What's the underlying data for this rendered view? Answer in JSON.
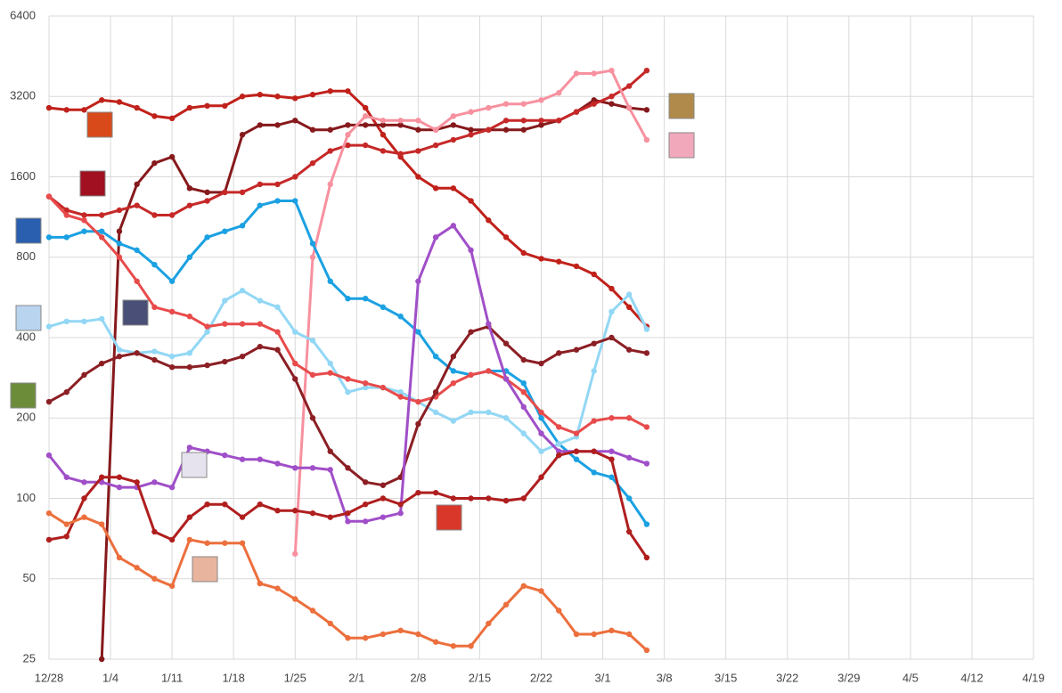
{
  "chart_data": {
    "type": "line",
    "log_scale": true,
    "grid": true,
    "x": [
      0,
      2,
      4,
      6,
      8,
      10,
      12,
      14,
      16,
      18,
      20,
      22,
      24,
      26,
      28,
      30,
      32,
      34,
      36,
      38,
      40,
      42,
      44,
      46,
      48,
      50,
      52,
      54,
      56,
      58,
      60,
      62,
      64,
      66,
      68
    ],
    "xlim": [
      0,
      112
    ],
    "xticks": [
      {
        "value": 0,
        "label": "12/28"
      },
      {
        "value": 7,
        "label": "1/4"
      },
      {
        "value": 14,
        "label": "1/11"
      },
      {
        "value": 21,
        "label": "1/18"
      },
      {
        "value": 28,
        "label": "1/25"
      },
      {
        "value": 35,
        "label": "2/1"
      },
      {
        "value": 42,
        "label": "2/8"
      },
      {
        "value": 49,
        "label": "2/15"
      },
      {
        "value": 56,
        "label": "2/22"
      },
      {
        "value": 63,
        "label": "3/1"
      },
      {
        "value": 70,
        "label": "3/8"
      },
      {
        "value": 77,
        "label": "3/15"
      },
      {
        "value": 84,
        "label": "3/22"
      },
      {
        "value": 91,
        "label": "3/29"
      },
      {
        "value": 98,
        "label": "4/5"
      },
      {
        "value": 105,
        "label": "4/12"
      },
      {
        "value": 112,
        "label": "4/19"
      }
    ],
    "ylim": [
      25,
      6400
    ],
    "yticks": [
      25,
      50,
      100,
      200,
      400,
      800,
      1600,
      3200,
      6400
    ],
    "series": [
      {
        "color": "#c0211a",
        "values": [
          2900,
          2850,
          2850,
          3100,
          3050,
          2900,
          2700,
          2650,
          2900,
          2950,
          2950,
          3200,
          3250,
          3200,
          3150,
          3250,
          3350,
          3350,
          2900,
          2300,
          1900,
          1600,
          1450,
          1450,
          1300,
          1100,
          950,
          830,
          790,
          770,
          740,
          690,
          610,
          520,
          440
        ]
      },
      {
        "color": "#86191c",
        "values": [
          null,
          null,
          null,
          25,
          1000,
          1500,
          1800,
          1900,
          1450,
          1400,
          1400,
          2300,
          2500,
          2500,
          2600,
          2400,
          2400,
          2500,
          2500,
          2500,
          2500,
          2400,
          2400,
          2500,
          2400,
          2400,
          2400,
          2400,
          2500,
          2600,
          2800,
          3100,
          3000,
          2900,
          2850
        ]
      },
      {
        "color": "#c62828",
        "values": [
          1350,
          1200,
          1150,
          1150,
          1200,
          1250,
          1150,
          1150,
          1250,
          1300,
          1400,
          1400,
          1500,
          1500,
          1600,
          1800,
          2000,
          2100,
          2100,
          2000,
          1950,
          2000,
          2100,
          2200,
          2300,
          2400,
          2600,
          2600,
          2600,
          2600,
          2800,
          3000,
          3200,
          3500,
          4000
        ]
      },
      {
        "color": "#f7919f",
        "values": [
          null,
          null,
          null,
          null,
          null,
          null,
          null,
          null,
          null,
          null,
          null,
          null,
          null,
          null,
          62,
          800,
          1500,
          2300,
          2700,
          2600,
          2600,
          2600,
          2400,
          2700,
          2800,
          2900,
          3000,
          3000,
          3100,
          3300,
          3900,
          3900,
          4000,
          2900,
          2200
        ]
      },
      {
        "color": "#1ba1e2",
        "values": [
          950,
          950,
          1000,
          1000,
          900,
          850,
          750,
          650,
          800,
          950,
          1000,
          1050,
          1250,
          1300,
          1300,
          900,
          650,
          560,
          560,
          520,
          480,
          420,
          340,
          300,
          290,
          300,
          300,
          270,
          200,
          160,
          140,
          125,
          120,
          100,
          80
        ]
      },
      {
        "color": "#92d7f5",
        "values": [
          440,
          460,
          460,
          470,
          360,
          350,
          355,
          340,
          350,
          420,
          550,
          600,
          550,
          520,
          420,
          390,
          320,
          250,
          260,
          260,
          250,
          230,
          210,
          195,
          210,
          210,
          200,
          175,
          150,
          160,
          170,
          300,
          500,
          580,
          430
        ]
      },
      {
        "color": "#e84b4b",
        "values": [
          1350,
          1150,
          1100,
          950,
          800,
          650,
          520,
          500,
          480,
          440,
          450,
          450,
          450,
          420,
          320,
          290,
          295,
          280,
          270,
          260,
          240,
          230,
          240,
          270,
          290,
          300,
          280,
          250,
          210,
          185,
          175,
          195,
          200,
          200,
          185
        ]
      },
      {
        "color": "#8b1f24",
        "values": [
          230,
          250,
          290,
          320,
          340,
          350,
          330,
          310,
          310,
          315,
          325,
          340,
          370,
          360,
          280,
          200,
          150,
          130,
          115,
          112,
          120,
          190,
          250,
          340,
          420,
          440,
          380,
          330,
          320,
          350,
          360,
          380,
          400,
          360,
          350
        ]
      },
      {
        "color": "#a04fc8",
        "values": [
          145,
          120,
          115,
          115,
          110,
          110,
          115,
          110,
          155,
          150,
          145,
          140,
          140,
          135,
          130,
          130,
          128,
          82,
          82,
          85,
          88,
          650,
          950,
          1050,
          850,
          450,
          280,
          220,
          175,
          150,
          150,
          150,
          150,
          142,
          135
        ]
      },
      {
        "color": "#b01e1e",
        "values": [
          70,
          72,
          100,
          120,
          120,
          115,
          75,
          70,
          85,
          95,
          95,
          85,
          95,
          90,
          90,
          88,
          85,
          88,
          95,
          100,
          95,
          105,
          105,
          100,
          100,
          100,
          98,
          100,
          120,
          145,
          150,
          150,
          140,
          75,
          60
        ]
      },
      {
        "color": "#ec6f3d",
        "values": [
          88,
          80,
          85,
          80,
          60,
          55,
          50,
          47,
          70,
          68,
          68,
          68,
          48,
          46,
          42,
          38,
          34,
          30,
          30,
          31,
          32,
          31,
          29,
          28,
          28,
          34,
          40,
          47,
          45,
          38,
          31,
          31,
          32,
          31,
          27
        ]
      }
    ]
  }
}
